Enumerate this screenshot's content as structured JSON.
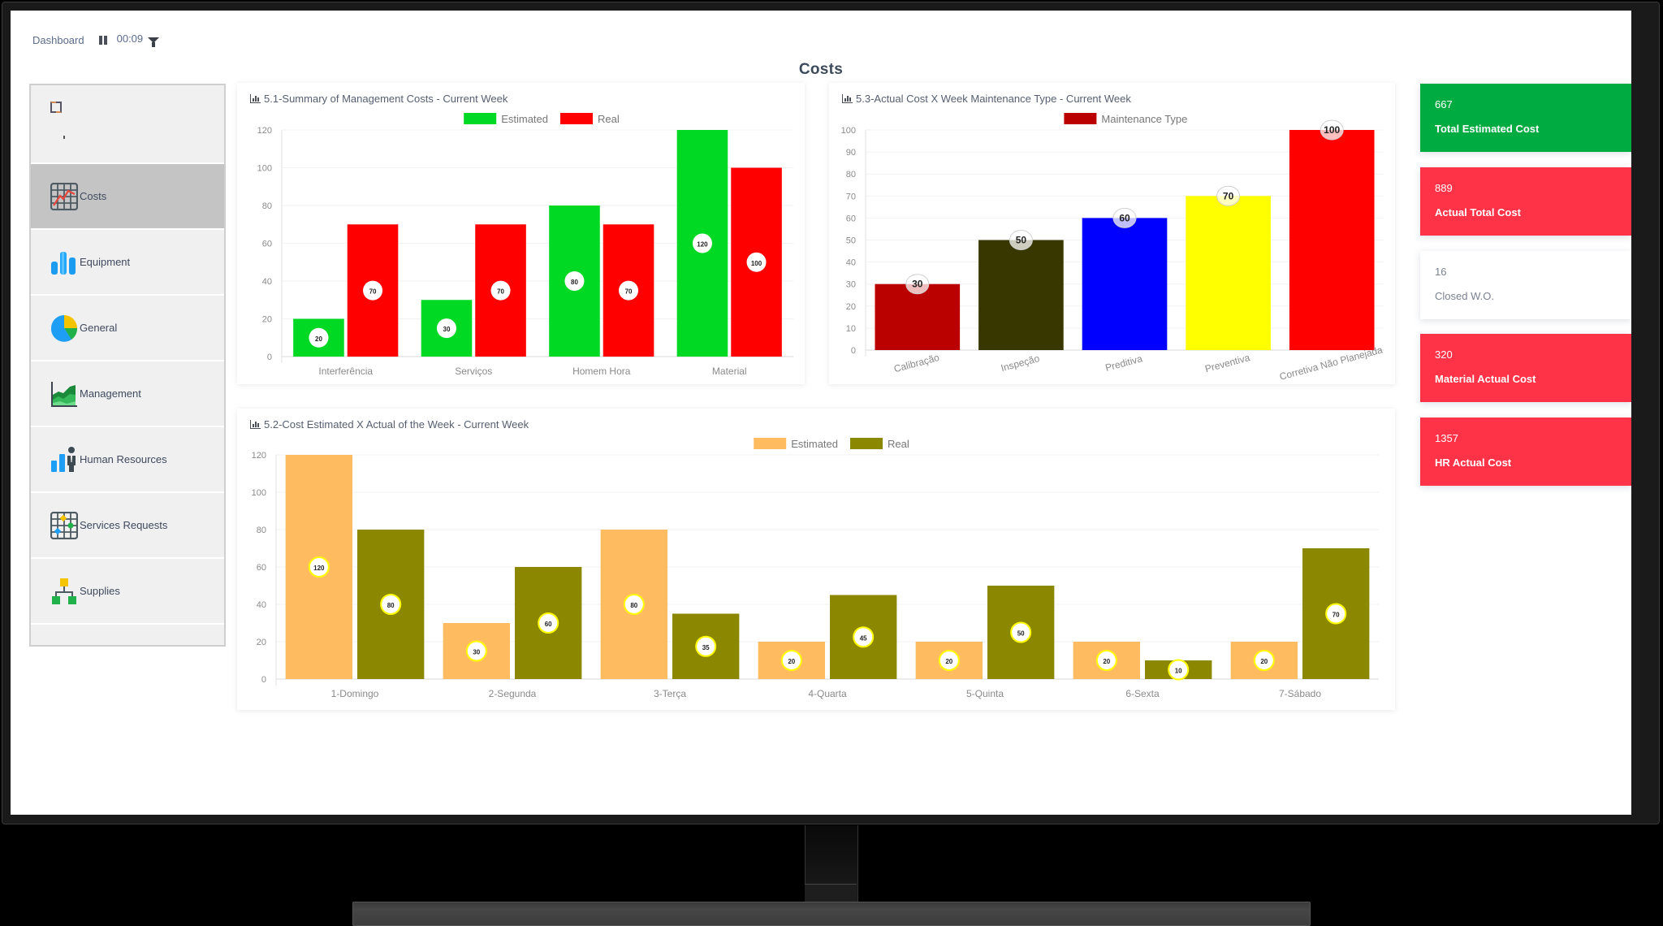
{
  "header": {
    "breadcrumb": "Dashboard",
    "timer": "00:09",
    "page_title": "Costs"
  },
  "sidebar": {
    "items": [
      {
        "label": "Costs",
        "icon": "costs-grid-chart-icon",
        "active": true
      },
      {
        "label": "Equipment",
        "icon": "equipment-bars-icon",
        "active": false
      },
      {
        "label": "General",
        "icon": "general-pie-icon",
        "active": false
      },
      {
        "label": "Management",
        "icon": "management-area-chart-icon",
        "active": false
      },
      {
        "label": "Human Resources",
        "icon": "human-resources-icon",
        "active": false
      },
      {
        "label": "Services Requests",
        "icon": "services-requests-grid-icon",
        "active": false
      },
      {
        "label": "Supplies",
        "icon": "supplies-hierarchy-icon",
        "active": false
      }
    ]
  },
  "kpis": [
    {
      "value": "667",
      "label": "Total Estimated Cost",
      "style": "green"
    },
    {
      "value": "889",
      "label": "Actual Total Cost",
      "style": "red"
    },
    {
      "value": "16",
      "label": "Closed W.O.",
      "style": "white"
    },
    {
      "value": "320",
      "label": "Material Actual Cost",
      "style": "red"
    },
    {
      "value": "1357",
      "label": "HR Actual Cost",
      "style": "red"
    }
  ],
  "colors": {
    "kpi_green": "#00ab42",
    "kpi_red": "#ff3347",
    "axis_text": "#888888",
    "grid": "#eeeeee"
  },
  "chart_data": [
    {
      "id": "chart51",
      "type": "bar",
      "title": "5.1-Summary of Management Costs - Current Week",
      "categories": [
        "Interferência",
        "Serviços",
        "Homem Hora",
        "Material"
      ],
      "series": [
        {
          "name": "Estimated",
          "color": "#00d923",
          "values": [
            20,
            30,
            80,
            120
          ]
        },
        {
          "name": "Real",
          "color": "#ff0000",
          "values": [
            70,
            70,
            70,
            100
          ]
        }
      ],
      "yticks": [
        0,
        20,
        40,
        60,
        80,
        100,
        120
      ],
      "ylim": [
        0,
        120
      ],
      "legend_position": "top",
      "label_position": "middle",
      "xlabel": "",
      "ylabel": "",
      "grid": true
    },
    {
      "id": "chart53",
      "type": "bar",
      "title": "5.3-Actual Cost X Week Maintenance Type - Current Week",
      "categories": [
        "Calibração",
        "Inspeção",
        "Preditiva",
        "Preventiva",
        "Corretiva Não Planejada"
      ],
      "series": [
        {
          "name": "Maintenance Type",
          "color": "#bb0000",
          "values": [
            30,
            50,
            60,
            70,
            100
          ],
          "bar_colors": [
            "#bb0000",
            "#393700",
            "#0000ff",
            "#ffff00",
            "#ff0000"
          ]
        }
      ],
      "yticks": [
        0,
        10,
        20,
        30,
        40,
        50,
        60,
        70,
        80,
        90,
        100
      ],
      "ylim": [
        0,
        100
      ],
      "legend_position": "top",
      "label_position": "top",
      "xlabel_rotation": -15,
      "xlabel": "",
      "ylabel": "",
      "grid": true
    },
    {
      "id": "chart52",
      "type": "bar",
      "title": "5.2-Cost Estimated X Actual of the Week - Current Week",
      "categories": [
        "1-Domingo",
        "2-Segunda",
        "3-Terça",
        "4-Quarta",
        "5-Quinta",
        "6-Sexta",
        "7-Sábado"
      ],
      "series": [
        {
          "name": "Estimated",
          "color": "#ffbb60",
          "values": [
            120,
            30,
            80,
            20,
            20,
            20,
            20
          ]
        },
        {
          "name": "Real",
          "color": "#8b8800",
          "values": [
            80,
            60,
            35,
            45,
            50,
            10,
            70
          ]
        }
      ],
      "yticks": [
        0,
        20,
        40,
        60,
        80,
        100,
        120
      ],
      "ylim": [
        0,
        120
      ],
      "legend_position": "top",
      "label_position": "middle",
      "xlabel": "",
      "ylabel": "",
      "grid": true
    }
  ]
}
